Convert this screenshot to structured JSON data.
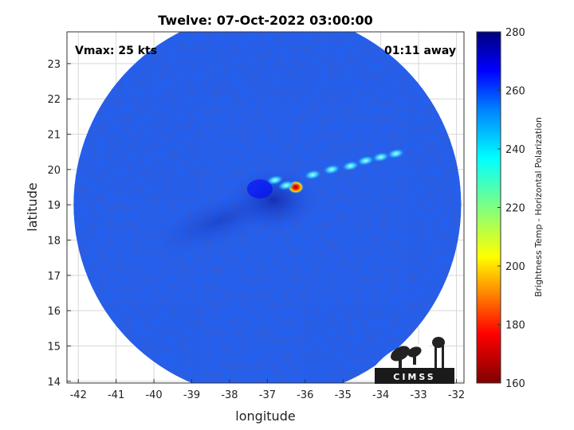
{
  "title": "Twelve: 07-Oct-2022 03:00:00",
  "annotations": {
    "vmax": "Vmax: 25 kts",
    "time_away": "01:11 away"
  },
  "logo": {
    "text": "CIMSS"
  },
  "chart_data": {
    "type": "heatmap",
    "title": "Twelve: 07-Oct-2022 03:00:00",
    "xlabel": "longitude",
    "ylabel": "latitude",
    "xlim": [
      -42.3,
      -31.8
    ],
    "ylim": [
      13.95,
      23.9
    ],
    "xticks": [
      -42,
      -41,
      -40,
      -39,
      -38,
      -37,
      -36,
      -35,
      -34,
      -33,
      -32
    ],
    "yticks": [
      14,
      15,
      16,
      17,
      18,
      19,
      20,
      21,
      22,
      23
    ],
    "grid": true,
    "domain": {
      "shape": "circle",
      "center_lon": -37.0,
      "center_lat": 19.0,
      "radius_deg": 5.3
    },
    "colorbar": {
      "label": "Brightness Temp - Horizontal Polarization",
      "range": [
        160,
        280
      ],
      "ticks": [
        160,
        180,
        200,
        220,
        240,
        260,
        280
      ],
      "colormap": "jet",
      "colors": [
        "#800000",
        "#ff0000",
        "#ffff00",
        "#80ff80",
        "#00ffff",
        "#0080ff",
        "#0000ff",
        "#000080"
      ]
    },
    "background_temp": 262,
    "features": [
      {
        "lon": -36.25,
        "lat": 19.5,
        "temp": 165,
        "label": "deep convection core"
      },
      {
        "lon": -36.5,
        "lat": 19.55,
        "temp": 235
      },
      {
        "lon": -36.8,
        "lat": 19.7,
        "temp": 238
      },
      {
        "lon": -35.8,
        "lat": 19.85,
        "temp": 235
      },
      {
        "lon": -35.3,
        "lat": 20.0,
        "temp": 232
      },
      {
        "lon": -34.8,
        "lat": 20.1,
        "temp": 230
      },
      {
        "lon": -34.4,
        "lat": 20.25,
        "temp": 238
      },
      {
        "lon": -34.0,
        "lat": 20.35,
        "temp": 240
      },
      {
        "lon": -33.6,
        "lat": 20.45,
        "temp": 245
      },
      {
        "lon": -37.2,
        "lat": 19.45,
        "temp": 270,
        "label": "warm center"
      }
    ]
  }
}
